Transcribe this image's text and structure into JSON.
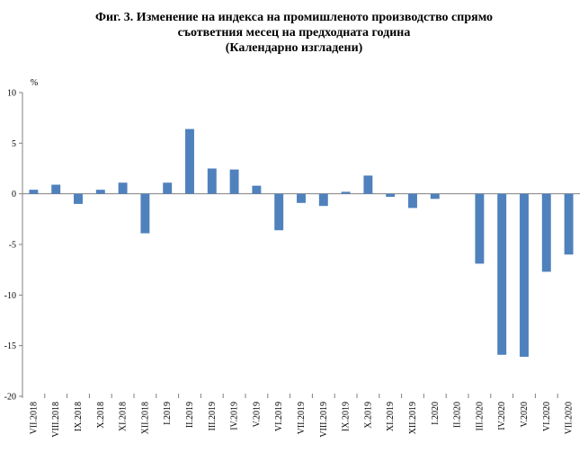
{
  "chart_data": {
    "type": "bar",
    "title_lines": [
      "Фиг. 3. Изменение на индекса на промишленото производство спрямо",
      "съответния месец на предходната година",
      "(Календарно изгладени)"
    ],
    "unit": "%",
    "ylim": [
      -20,
      10
    ],
    "yticks": [
      "10",
      "5",
      "0",
      "-5",
      "-10",
      "-15",
      "-20"
    ],
    "bar_color": "#4f81bd",
    "categories": [
      "VII.2018",
      "VIII.2018",
      "IX.2018",
      "X.2018",
      "XI.2018",
      "XII.2018",
      "I.2019",
      "II.2019",
      "III.2019",
      "IV.2019",
      "V.2019",
      "VI.2019",
      "VII.2019",
      "VIII.2019",
      "IX.2019",
      "X.2019",
      "XI.2019",
      "XII.2019",
      "I.2020",
      "II.2020",
      "III.2020",
      "IV.2020",
      "V.2020",
      "VI.2020",
      "VII.2020"
    ],
    "values": [
      0.4,
      0.9,
      -1.0,
      0.4,
      1.1,
      -3.9,
      1.1,
      6.4,
      2.5,
      2.4,
      0.8,
      -3.6,
      -0.9,
      -1.2,
      0.2,
      1.8,
      -0.3,
      -1.4,
      -0.5,
      0.0,
      -6.9,
      -15.9,
      -16.1,
      -7.7,
      -6.0
    ],
    "grid": false,
    "legend": false
  }
}
